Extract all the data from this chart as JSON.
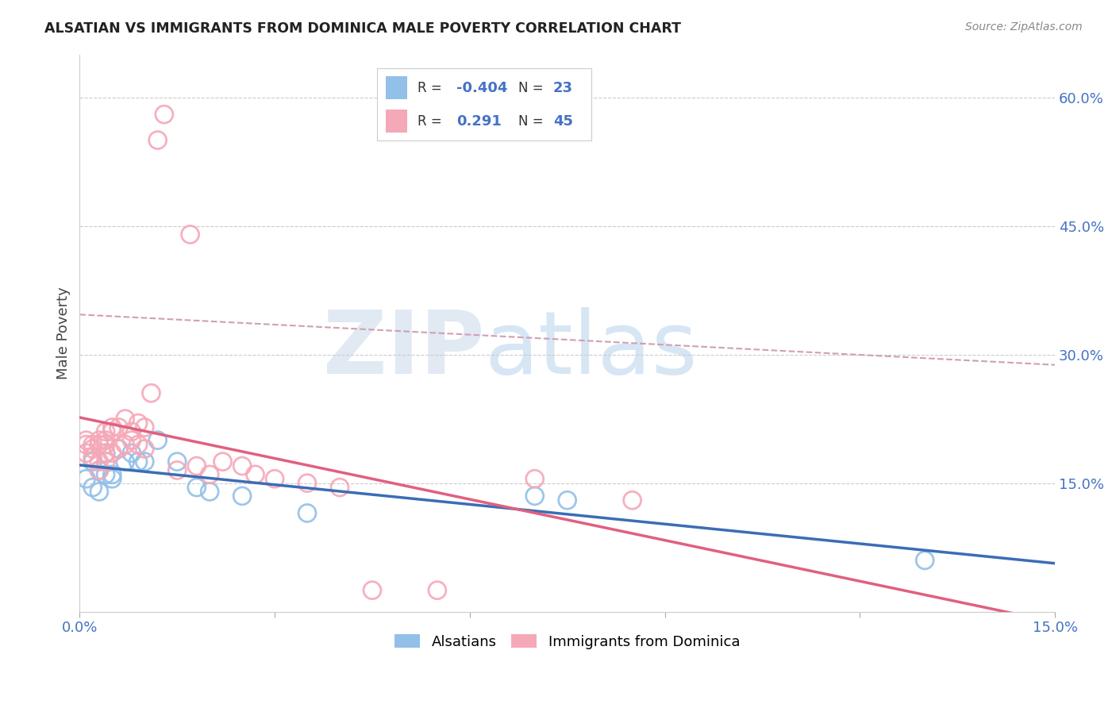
{
  "title": "ALSATIAN VS IMMIGRANTS FROM DOMINICA MALE POVERTY CORRELATION CHART",
  "source": "Source: ZipAtlas.com",
  "ylabel": "Male Poverty",
  "xlim": [
    0.0,
    0.15
  ],
  "ylim": [
    0.0,
    0.65
  ],
  "watermark_zip": "ZIP",
  "watermark_atlas": "atlas",
  "blue_color": "#92C0E8",
  "pink_color": "#F5A8B8",
  "blue_line_color": "#3B6DB5",
  "pink_line_color": "#E06080",
  "dashed_line_color": "#D0A0B0",
  "background_color": "#FFFFFF",
  "grid_color": "#CCCCCC",
  "alsatians_x": [
    0.001,
    0.002,
    0.002,
    0.003,
    0.003,
    0.004,
    0.004,
    0.005,
    0.005,
    0.006,
    0.007,
    0.008,
    0.009,
    0.01,
    0.012,
    0.015,
    0.018,
    0.02,
    0.025,
    0.035,
    0.07,
    0.075,
    0.13
  ],
  "alsatians_y": [
    0.155,
    0.145,
    0.175,
    0.165,
    0.14,
    0.185,
    0.16,
    0.16,
    0.155,
    0.19,
    0.175,
    0.185,
    0.175,
    0.175,
    0.2,
    0.175,
    0.145,
    0.14,
    0.135,
    0.115,
    0.135,
    0.13,
    0.06
  ],
  "dominica_x": [
    0.001,
    0.001,
    0.001,
    0.002,
    0.002,
    0.002,
    0.003,
    0.003,
    0.003,
    0.003,
    0.004,
    0.004,
    0.004,
    0.004,
    0.004,
    0.005,
    0.005,
    0.005,
    0.006,
    0.006,
    0.007,
    0.007,
    0.008,
    0.008,
    0.009,
    0.009,
    0.01,
    0.01,
    0.011,
    0.012,
    0.013,
    0.015,
    0.017,
    0.018,
    0.02,
    0.022,
    0.025,
    0.027,
    0.03,
    0.035,
    0.04,
    0.045,
    0.055,
    0.07,
    0.085
  ],
  "dominica_y": [
    0.2,
    0.195,
    0.185,
    0.195,
    0.19,
    0.18,
    0.195,
    0.2,
    0.175,
    0.165,
    0.21,
    0.2,
    0.195,
    0.185,
    0.175,
    0.215,
    0.21,
    0.185,
    0.215,
    0.19,
    0.225,
    0.195,
    0.21,
    0.2,
    0.22,
    0.195,
    0.215,
    0.19,
    0.255,
    0.55,
    0.58,
    0.165,
    0.44,
    0.17,
    0.16,
    0.175,
    0.17,
    0.16,
    0.155,
    0.15,
    0.145,
    0.025,
    0.025,
    0.155,
    0.13
  ]
}
